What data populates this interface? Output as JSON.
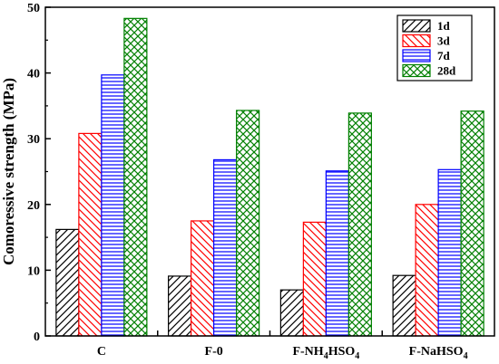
{
  "chart_data": {
    "type": "bar",
    "categories": [
      "C",
      "F-0",
      "F-NH4HSO4",
      "F-NaHSO4"
    ],
    "category_labels": [
      {
        "base": "C",
        "sub": "",
        "tail": ""
      },
      {
        "base": "F-0",
        "sub": "",
        "tail": ""
      },
      {
        "base": "F-NH",
        "sub": "4",
        "tail": "HSO",
        "sub2": "4"
      },
      {
        "base": "F-NaHSO",
        "sub": "4",
        "tail": ""
      }
    ],
    "series": [
      {
        "name": "1d",
        "values": [
          16.2,
          9.1,
          7.0,
          9.2
        ],
        "color": "#000000",
        "pattern": "diag-left"
      },
      {
        "name": "3d",
        "values": [
          30.8,
          17.5,
          17.3,
          20.0
        ],
        "color": "#ff0000",
        "pattern": "diag-right"
      },
      {
        "name": "7d",
        "values": [
          39.7,
          26.8,
          25.1,
          25.3
        ],
        "color": "#0000ff",
        "pattern": "horizontal"
      },
      {
        "name": "28d",
        "values": [
          48.3,
          34.3,
          33.9,
          34.2
        ],
        "color": "#008000",
        "pattern": "crosshatch"
      }
    ],
    "ylabel": "Comoressive strength (MPa)",
    "xlabel": "",
    "ylim": [
      0,
      50
    ],
    "yticks": [
      0,
      10,
      20,
      30,
      40,
      50
    ],
    "legend_position": "top-right",
    "grid": false
  }
}
